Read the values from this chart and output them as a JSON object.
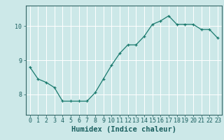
{
  "x": [
    0,
    1,
    2,
    3,
    4,
    5,
    6,
    7,
    8,
    9,
    10,
    11,
    12,
    13,
    14,
    15,
    16,
    17,
    18,
    19,
    20,
    21,
    22,
    23
  ],
  "y": [
    8.8,
    8.45,
    8.35,
    8.2,
    7.8,
    7.8,
    7.8,
    7.8,
    8.05,
    8.45,
    8.85,
    9.2,
    9.45,
    9.45,
    9.7,
    10.05,
    10.15,
    10.3,
    10.05,
    10.05,
    10.05,
    9.9,
    9.9,
    9.65
  ],
  "xlabel": "Humidex (Indice chaleur)",
  "ylim": [
    7.4,
    10.6
  ],
  "xlim": [
    -0.5,
    23.5
  ],
  "yticks": [
    8,
    9,
    10
  ],
  "xticks": [
    0,
    1,
    2,
    3,
    4,
    5,
    6,
    7,
    8,
    9,
    10,
    11,
    12,
    13,
    14,
    15,
    16,
    17,
    18,
    19,
    20,
    21,
    22,
    23
  ],
  "line_color": "#1a7a6e",
  "marker_color": "#1a7a6e",
  "bg_color": "#cce8e8",
  "grid_color": "#ffffff",
  "axis_color": "#336666",
  "tick_color": "#1a5f5f",
  "label_fontsize": 7.5,
  "tick_fontsize": 6.0
}
